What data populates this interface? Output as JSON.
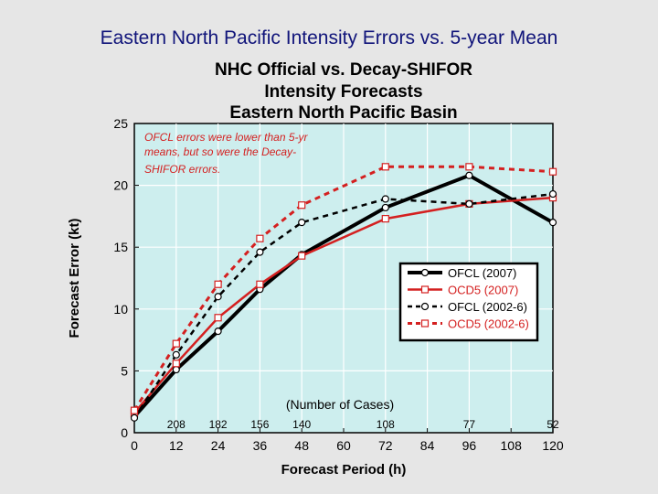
{
  "slide": {
    "title": "Eastern North Pacific Intensity Errors vs. 5-year Mean"
  },
  "chart_data": {
    "type": "line",
    "title": [
      "NHC Official vs. Decay-SHIFOR",
      "Intensity Forecasts",
      "Eastern North Pacific Basin"
    ],
    "xlabel": "Forecast Period (h)",
    "ylabel": "Forecast Error (kt)",
    "xlim": [
      0,
      120
    ],
    "ylim": [
      0,
      25
    ],
    "xticks": [
      0,
      12,
      24,
      36,
      48,
      60,
      72,
      84,
      96,
      108,
      120
    ],
    "yticks": [
      0,
      5,
      10,
      15,
      20,
      25
    ],
    "annotation": [
      "OFCL errors were lower than 5-yr",
      "means, but so were the Decay-",
      "SHIFOR errors."
    ],
    "cases_header": "(Number of Cases)",
    "cases": [
      {
        "x": 12,
        "label": "208"
      },
      {
        "x": 24,
        "label": "182"
      },
      {
        "x": 36,
        "label": "156"
      },
      {
        "x": 48,
        "label": "140"
      },
      {
        "x": 72,
        "label": "108"
      },
      {
        "x": 96,
        "label": "77"
      },
      {
        "x": 120,
        "label": "52"
      }
    ],
    "series": [
      {
        "name": "OFCL (2007)",
        "color": "#000000",
        "dash": "solid",
        "marker": "circle",
        "width": 4,
        "x": [
          0,
          12,
          24,
          36,
          48,
          72,
          96,
          120
        ],
        "y": [
          1.3,
          5.1,
          8.2,
          11.6,
          14.4,
          18.2,
          20.8,
          17.0
        ]
      },
      {
        "name": "OCD5 (2007)",
        "color": "#d42020",
        "dash": "solid",
        "marker": "square",
        "width": 2.5,
        "x": [
          0,
          12,
          24,
          36,
          48,
          72,
          96,
          120
        ],
        "y": [
          1.6,
          5.6,
          9.3,
          12.0,
          14.3,
          17.3,
          18.5,
          19.0
        ]
      },
      {
        "name": "OFCL (2002-6)",
        "color": "#000000",
        "dash": "dashed",
        "marker": "circle",
        "width": 2.5,
        "x": [
          0,
          12,
          24,
          36,
          48,
          72,
          96,
          120
        ],
        "y": [
          1.2,
          6.3,
          11.0,
          14.6,
          17.0,
          18.9,
          18.5,
          19.3
        ]
      },
      {
        "name": "OCD5 (2002-6)",
        "color": "#d42020",
        "dash": "dashed",
        "marker": "square",
        "width": 3,
        "x": [
          0,
          12,
          24,
          36,
          48,
          72,
          96,
          120
        ],
        "y": [
          1.8,
          7.2,
          12.0,
          15.7,
          18.4,
          21.5,
          21.5,
          21.1
        ]
      }
    ],
    "legend_position": "right"
  }
}
